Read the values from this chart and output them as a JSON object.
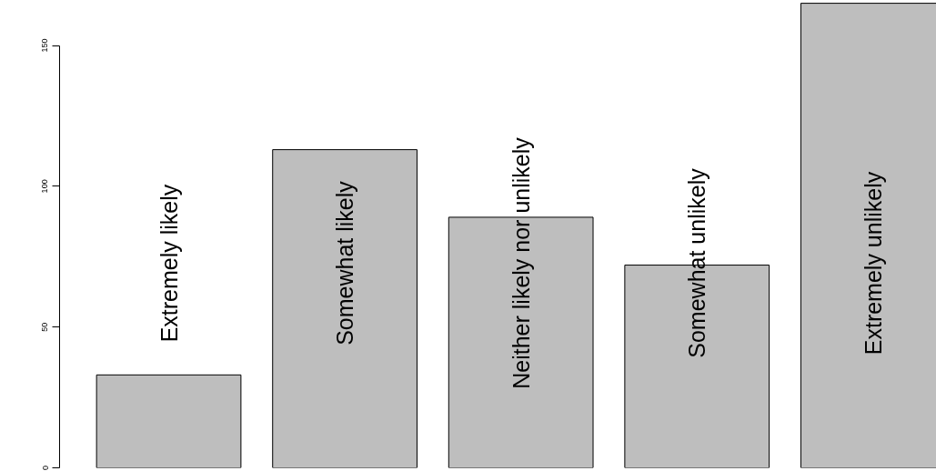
{
  "chart_data": {
    "type": "bar",
    "categories": [
      "Extremely likely",
      "Somewhat likely",
      "Neither likely nor unlikely",
      "Somewhat unlikely",
      "Extremely unlikely"
    ],
    "values": [
      33,
      113,
      89,
      72,
      165
    ],
    "color": "#bebebe",
    "ylim": [
      0,
      166
    ],
    "yticks": [
      0,
      50,
      100,
      150
    ],
    "grid": false
  }
}
